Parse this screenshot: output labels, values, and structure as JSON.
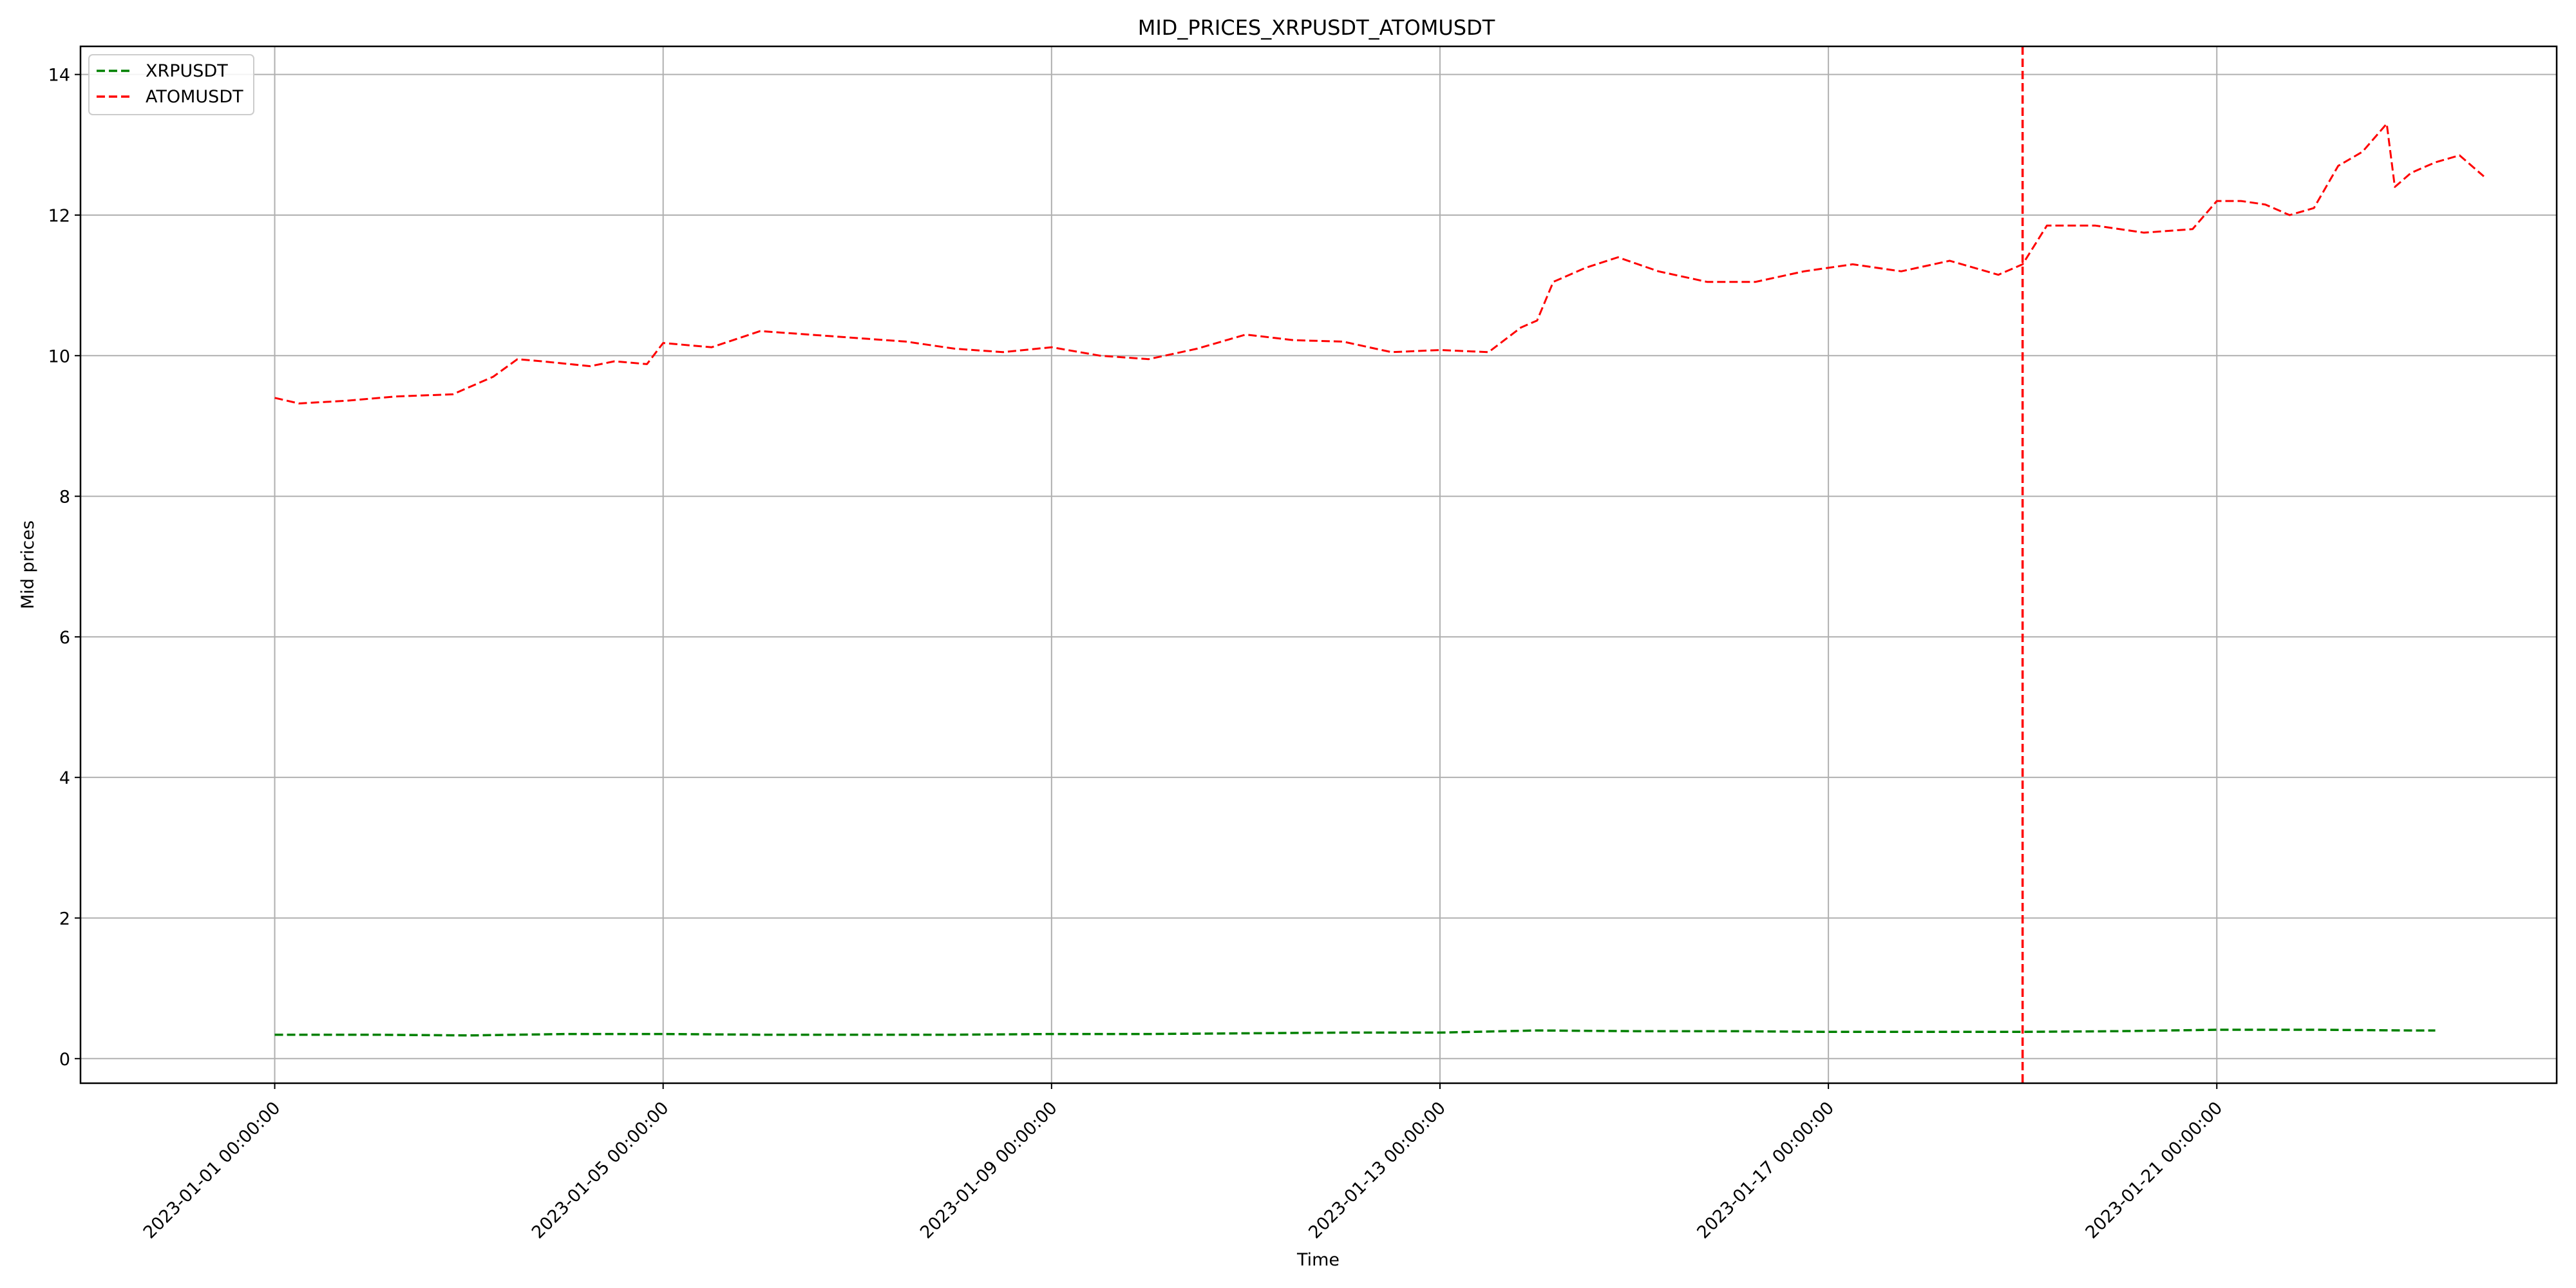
{
  "chart_data": {
    "type": "line",
    "title": "MID_PRICES_XRPUSDT_ATOMUSDT",
    "xlabel": "Time",
    "ylabel": "Mid prices",
    "x_range": [
      "2022-12-30 00:00:00",
      "2023-01-24 12:00:00"
    ],
    "ylim": [
      -0.35,
      14.4
    ],
    "x_ticks": [
      "2023-01-01 00:00:00",
      "2023-01-05 00:00:00",
      "2023-01-09 00:00:00",
      "2023-01-13 00:00:00",
      "2023-01-17 00:00:00",
      "2023-01-21 00:00:00"
    ],
    "y_ticks": [
      "0",
      "2",
      "4",
      "6",
      "8",
      "10",
      "12",
      "14"
    ],
    "grid": true,
    "legend_position": "top-left",
    "vertical_marker": {
      "x": "2023-01-19 00:00:00",
      "color": "#ff0000",
      "style": "dashed"
    },
    "series": [
      {
        "name": "XRPUSDT",
        "color": "#008000",
        "style": "dashed",
        "points": [
          [
            "2023-01-01 00:00:00",
            0.34
          ],
          [
            "2023-01-02 00:00:00",
            0.34
          ],
          [
            "2023-01-03 00:00:00",
            0.33
          ],
          [
            "2023-01-04 00:00:00",
            0.35
          ],
          [
            "2023-01-05 00:00:00",
            0.35
          ],
          [
            "2023-01-06 00:00:00",
            0.34
          ],
          [
            "2023-01-07 00:00:00",
            0.34
          ],
          [
            "2023-01-08 00:00:00",
            0.34
          ],
          [
            "2023-01-09 00:00:00",
            0.35
          ],
          [
            "2023-01-10 00:00:00",
            0.35
          ],
          [
            "2023-01-11 00:00:00",
            0.36
          ],
          [
            "2023-01-12 00:00:00",
            0.37
          ],
          [
            "2023-01-13 00:00:00",
            0.37
          ],
          [
            "2023-01-14 00:00:00",
            0.4
          ],
          [
            "2023-01-15 00:00:00",
            0.39
          ],
          [
            "2023-01-16 00:00:00",
            0.39
          ],
          [
            "2023-01-17 00:00:00",
            0.38
          ],
          [
            "2023-01-18 00:00:00",
            0.38
          ],
          [
            "2023-01-19 00:00:00",
            0.38
          ],
          [
            "2023-01-20 00:00:00",
            0.39
          ],
          [
            "2023-01-21 00:00:00",
            0.41
          ],
          [
            "2023-01-22 00:00:00",
            0.41
          ],
          [
            "2023-01-23 00:00:00",
            0.4
          ],
          [
            "2023-01-23 06:00:00",
            0.4
          ]
        ]
      },
      {
        "name": "ATOMUSDT",
        "color": "#ff0000",
        "style": "dashed",
        "points": [
          [
            "2023-01-01 00:00:00",
            9.4
          ],
          [
            "2023-01-01 06:00:00",
            9.32
          ],
          [
            "2023-01-01 18:00:00",
            9.36
          ],
          [
            "2023-01-02 06:00:00",
            9.42
          ],
          [
            "2023-01-02 20:00:00",
            9.45
          ],
          [
            "2023-01-03 06:00:00",
            9.7
          ],
          [
            "2023-01-03 12:00:00",
            9.95
          ],
          [
            "2023-01-03 18:00:00",
            9.92
          ],
          [
            "2023-01-04 06:00:00",
            9.85
          ],
          [
            "2023-01-04 12:00:00",
            9.92
          ],
          [
            "2023-01-04 20:00:00",
            9.88
          ],
          [
            "2023-01-05 00:00:00",
            10.18
          ],
          [
            "2023-01-05 12:00:00",
            10.12
          ],
          [
            "2023-01-06 00:00:00",
            10.35
          ],
          [
            "2023-01-06 12:00:00",
            10.3
          ],
          [
            "2023-01-07 00:00:00",
            10.25
          ],
          [
            "2023-01-07 12:00:00",
            10.2
          ],
          [
            "2023-01-08 00:00:00",
            10.1
          ],
          [
            "2023-01-08 12:00:00",
            10.05
          ],
          [
            "2023-01-09 00:00:00",
            10.12
          ],
          [
            "2023-01-09 12:00:00",
            10.0
          ],
          [
            "2023-01-10 00:00:00",
            9.95
          ],
          [
            "2023-01-10 12:00:00",
            10.1
          ],
          [
            "2023-01-11 00:00:00",
            10.3
          ],
          [
            "2023-01-11 12:00:00",
            10.22
          ],
          [
            "2023-01-12 00:00:00",
            10.2
          ],
          [
            "2023-01-12 12:00:00",
            10.05
          ],
          [
            "2023-01-13 00:00:00",
            10.08
          ],
          [
            "2023-01-13 12:00:00",
            10.05
          ],
          [
            "2023-01-13 20:00:00",
            10.4
          ],
          [
            "2023-01-14 00:00:00",
            10.5
          ],
          [
            "2023-01-14 04:00:00",
            11.05
          ],
          [
            "2023-01-14 12:00:00",
            11.25
          ],
          [
            "2023-01-14 20:00:00",
            11.4
          ],
          [
            "2023-01-15 06:00:00",
            11.2
          ],
          [
            "2023-01-15 18:00:00",
            11.05
          ],
          [
            "2023-01-16 06:00:00",
            11.05
          ],
          [
            "2023-01-16 18:00:00",
            11.2
          ],
          [
            "2023-01-17 06:00:00",
            11.3
          ],
          [
            "2023-01-17 18:00:00",
            11.2
          ],
          [
            "2023-01-18 06:00:00",
            11.35
          ],
          [
            "2023-01-18 18:00:00",
            11.15
          ],
          [
            "2023-01-19 00:00:00",
            11.3
          ],
          [
            "2023-01-19 06:00:00",
            11.85
          ],
          [
            "2023-01-19 18:00:00",
            11.85
          ],
          [
            "2023-01-20 06:00:00",
            11.75
          ],
          [
            "2023-01-20 18:00:00",
            11.8
          ],
          [
            "2023-01-21 00:00:00",
            12.2
          ],
          [
            "2023-01-21 06:00:00",
            12.2
          ],
          [
            "2023-01-21 12:00:00",
            12.15
          ],
          [
            "2023-01-21 18:00:00",
            12.0
          ],
          [
            "2023-01-22 00:00:00",
            12.1
          ],
          [
            "2023-01-22 06:00:00",
            12.7
          ],
          [
            "2023-01-22 12:00:00",
            12.9
          ],
          [
            "2023-01-22 18:00:00",
            13.3
          ],
          [
            "2023-01-22 20:00:00",
            12.4
          ],
          [
            "2023-01-23 00:00:00",
            12.6
          ],
          [
            "2023-01-23 06:00:00",
            12.75
          ],
          [
            "2023-01-23 12:00:00",
            12.85
          ],
          [
            "2023-01-23 18:00:00",
            12.55
          ]
        ]
      }
    ]
  }
}
